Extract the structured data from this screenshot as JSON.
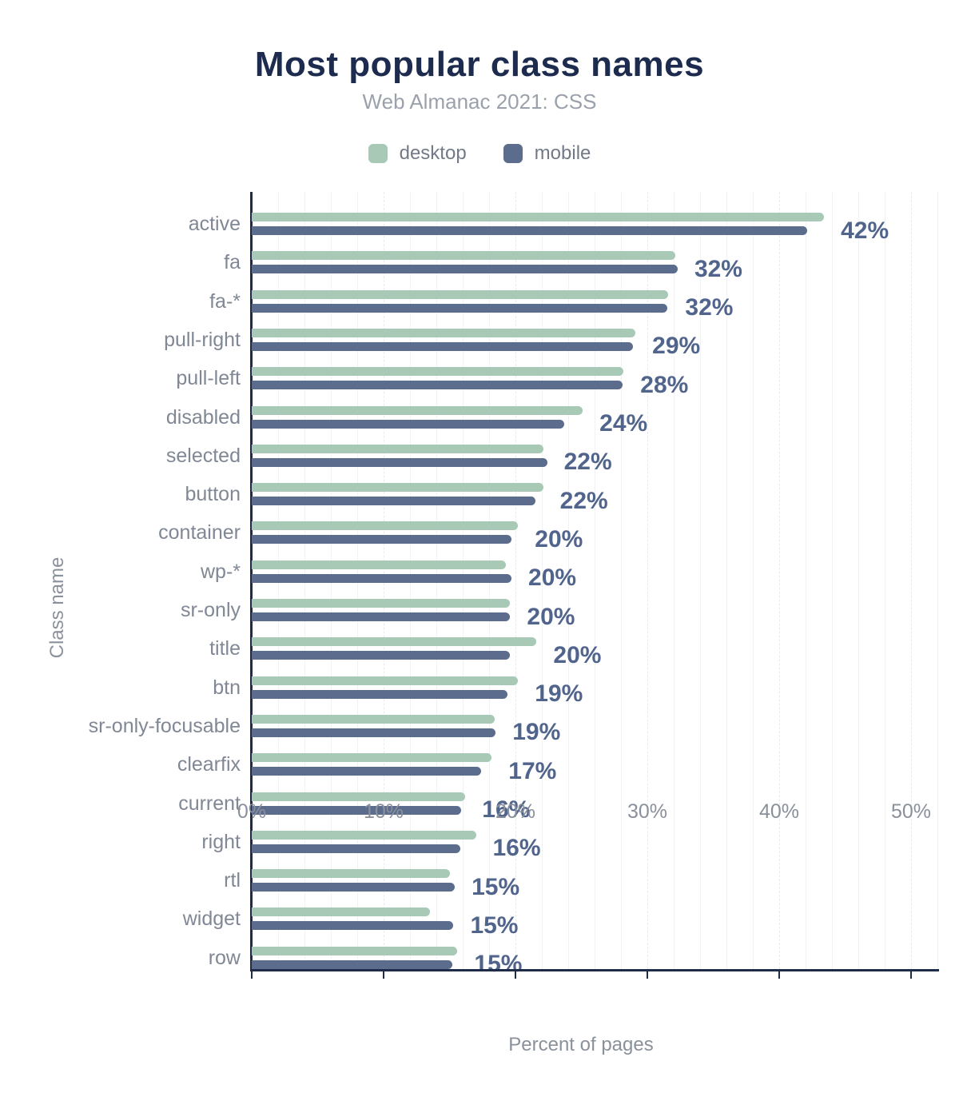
{
  "title": "Most popular class names",
  "subtitle": "Web Almanac 2021: CSS",
  "colors": {
    "title": "#1d2c4e",
    "subtitle": "#9ba1ab",
    "axis": "#1e2b49",
    "value_label": "#50648c",
    "muted_text": "#8a919c",
    "desktop": "#a7c9b6",
    "mobile": "#5b6c8c"
  },
  "chart_data": {
    "type": "bar",
    "orientation": "horizontal",
    "title": "Most popular class names",
    "subtitle": "Web Almanac 2021: CSS",
    "xlabel": "Percent of pages",
    "ylabel": "Class name",
    "xlim": [
      0,
      50
    ],
    "grid": "vertical, minor every 2%, dashed major every 10%",
    "legend_position": "top center",
    "categories": [
      "active",
      "fa",
      "fa-*",
      "pull-right",
      "pull-left",
      "disabled",
      "selected",
      "button",
      "container",
      "wp-*",
      "sr-only",
      "title",
      "btn",
      "sr-only-focusable",
      "clearfix",
      "current",
      "right",
      "rtl",
      "widget",
      "row"
    ],
    "series": [
      {
        "name": "desktop",
        "color": "#a7c9b6",
        "values": [
          43.4,
          32.1,
          31.6,
          29.1,
          28.2,
          25.1,
          22.1,
          22.1,
          20.2,
          19.3,
          19.6,
          21.6,
          20.2,
          18.4,
          18.2,
          16.2,
          17.0,
          15.0,
          13.5,
          15.6
        ]
      },
      {
        "name": "mobile",
        "color": "#5b6c8c",
        "values": [
          42.1,
          32.3,
          31.5,
          28.9,
          28.1,
          23.7,
          22.4,
          21.5,
          19.7,
          19.7,
          19.6,
          19.6,
          19.4,
          18.5,
          17.4,
          15.9,
          15.8,
          15.4,
          15.3,
          15.2
        ]
      }
    ],
    "bar_labels": [
      "42%",
      "32%",
      "32%",
      "29%",
      "28%",
      "24%",
      "22%",
      "22%",
      "20%",
      "20%",
      "20%",
      "20%",
      "19%",
      "19%",
      "17%",
      "16%",
      "16%",
      "15%",
      "15%",
      "15%"
    ],
    "x_ticks": [
      "0%",
      "10%",
      "20%",
      "30%",
      "40%",
      "50%"
    ]
  }
}
